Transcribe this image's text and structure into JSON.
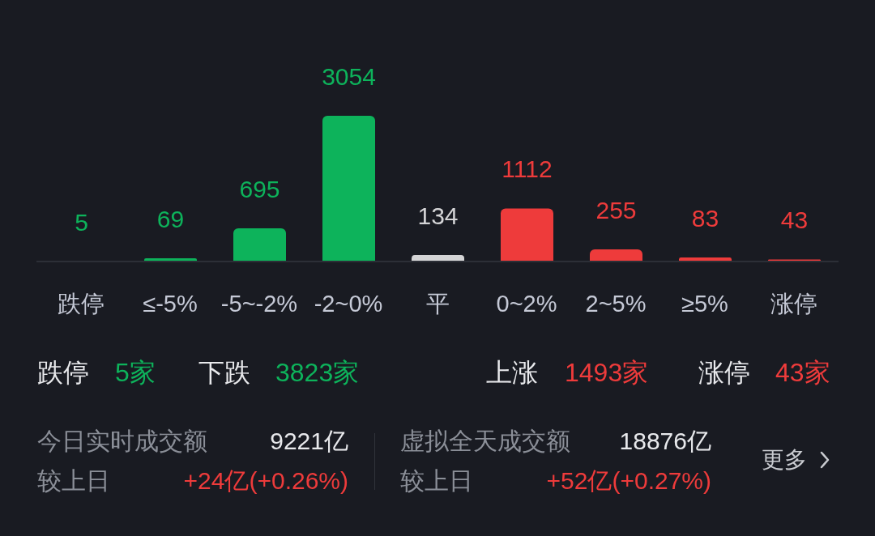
{
  "chart_data": {
    "type": "bar",
    "categories": [
      "跌停",
      "≤-5%",
      "-5~-2%",
      "-2~0%",
      "平",
      "0~2%",
      "2~5%",
      "≥5%",
      "涨停"
    ],
    "values": [
      5,
      69,
      695,
      3054,
      134,
      1112,
      255,
      83,
      43
    ],
    "colors": [
      "#0db35b",
      "#0db35b",
      "#0db35b",
      "#0db35b",
      "#d4d4d6",
      "#ee3b3b",
      "#ee3b3b",
      "#ee3b3b",
      "#ee3b3b"
    ],
    "data_labels": true,
    "annotations": [
      "跌停",
      "5家",
      "下跌",
      "3823家",
      "上涨",
      "1493家",
      "涨停",
      "43家",
      "今日实时成交额",
      "9221亿",
      "较上日",
      "+24亿(+0.26%)",
      "虚拟全天成交额",
      "18876亿",
      "较上日",
      "+52亿(+0.27%)",
      "更多"
    ]
  }
}
